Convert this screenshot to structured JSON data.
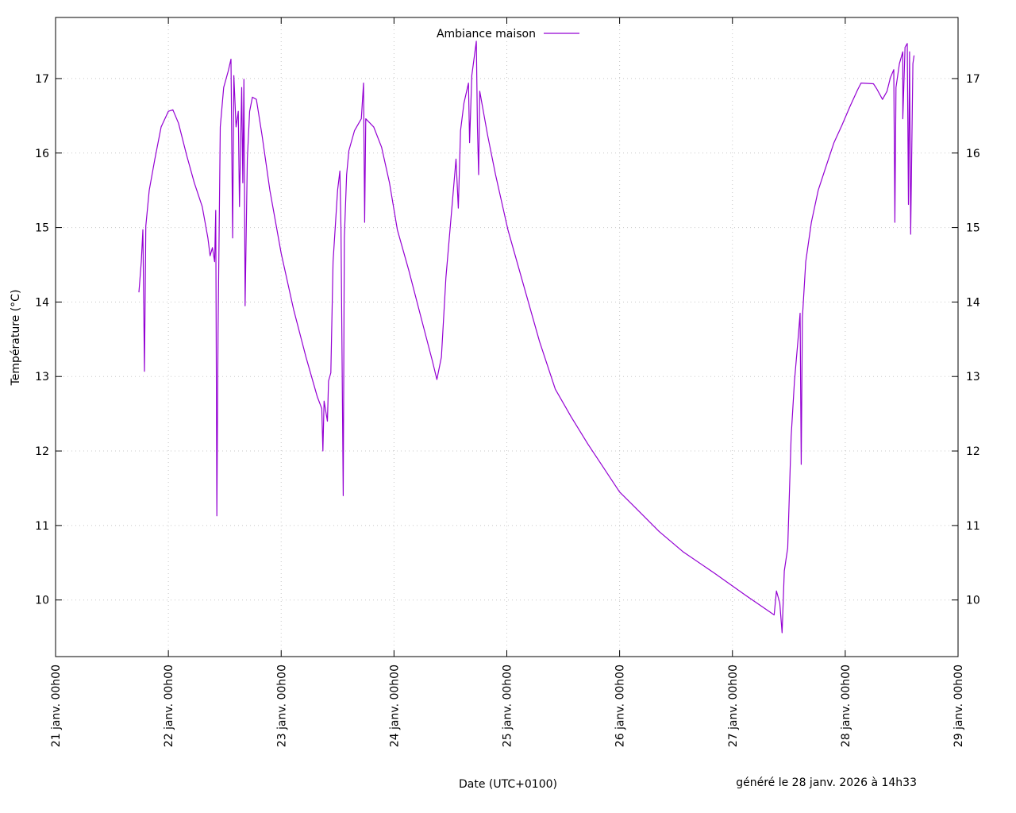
{
  "chart_data": {
    "type": "line",
    "title": "",
    "xlabel": "Date (UTC+0100)",
    "ylabel": "Température (°C)",
    "footer": "généré le 28 janv. 2026 à 14h33",
    "x_unit": "days since 21 janv. 00h00",
    "xlim": [
      0,
      8
    ],
    "ylim": [
      9.24,
      17.82
    ],
    "x_ticks": [
      "21 janv. 00h00",
      "22 janv. 00h00",
      "23 janv. 00h00",
      "24 janv. 00h00",
      "25 janv. 00h00",
      "26 janv. 00h00",
      "27 janv. 00h00",
      "28 janv. 00h00",
      "29 janv. 00h00"
    ],
    "y_ticks": [
      10,
      11,
      12,
      13,
      14,
      15,
      16,
      17
    ],
    "grid": true,
    "legend_position": "top-center",
    "series": [
      {
        "name": "Ambiance maison",
        "color": "#9400d3",
        "points": [
          [
            0.739,
            14.13
          ],
          [
            0.76,
            14.54
          ],
          [
            0.774,
            14.97
          ],
          [
            0.788,
            13.07
          ],
          [
            0.8,
            15.02
          ],
          [
            0.83,
            15.5
          ],
          [
            0.88,
            15.92
          ],
          [
            0.936,
            16.35
          ],
          [
            1.0,
            16.56
          ],
          [
            1.04,
            16.58
          ],
          [
            1.09,
            16.4
          ],
          [
            1.16,
            15.98
          ],
          [
            1.23,
            15.6
          ],
          [
            1.3,
            15.28
          ],
          [
            1.35,
            14.86
          ],
          [
            1.37,
            14.62
          ],
          [
            1.39,
            14.73
          ],
          [
            1.41,
            14.54
          ],
          [
            1.42,
            15.23
          ],
          [
            1.43,
            11.13
          ],
          [
            1.44,
            13.58
          ],
          [
            1.46,
            16.35
          ],
          [
            1.49,
            16.88
          ],
          [
            1.53,
            17.1
          ],
          [
            1.555,
            17.26
          ],
          [
            1.57,
            14.86
          ],
          [
            1.58,
            17.04
          ],
          [
            1.6,
            16.35
          ],
          [
            1.62,
            16.56
          ],
          [
            1.63,
            15.28
          ],
          [
            1.65,
            16.88
          ],
          [
            1.66,
            15.6
          ],
          [
            1.67,
            16.99
          ],
          [
            1.68,
            13.95
          ],
          [
            1.7,
            15.92
          ],
          [
            1.72,
            16.56
          ],
          [
            1.745,
            16.75
          ],
          [
            1.78,
            16.72
          ],
          [
            1.83,
            16.24
          ],
          [
            1.9,
            15.5
          ],
          [
            2.0,
            14.65
          ],
          [
            2.11,
            13.9
          ],
          [
            2.22,
            13.26
          ],
          [
            2.32,
            12.73
          ],
          [
            2.36,
            12.57
          ],
          [
            2.37,
            12.0
          ],
          [
            2.38,
            12.67
          ],
          [
            2.41,
            12.4
          ],
          [
            2.42,
            12.94
          ],
          [
            2.44,
            13.05
          ],
          [
            2.46,
            14.54
          ],
          [
            2.5,
            15.5
          ],
          [
            2.52,
            15.76
          ],
          [
            2.53,
            14.97
          ],
          [
            2.55,
            11.4
          ],
          [
            2.56,
            14.86
          ],
          [
            2.58,
            15.71
          ],
          [
            2.6,
            16.03
          ],
          [
            2.65,
            16.3
          ],
          [
            2.71,
            16.46
          ],
          [
            2.73,
            16.94
          ],
          [
            2.74,
            15.07
          ],
          [
            2.75,
            16.46
          ],
          [
            2.82,
            16.35
          ],
          [
            2.89,
            16.08
          ],
          [
            2.96,
            15.6
          ],
          [
            3.03,
            14.97
          ],
          [
            3.13,
            14.43
          ],
          [
            3.24,
            13.79
          ],
          [
            3.34,
            13.21
          ],
          [
            3.38,
            12.96
          ],
          [
            3.42,
            13.26
          ],
          [
            3.46,
            14.33
          ],
          [
            3.52,
            15.39
          ],
          [
            3.55,
            15.92
          ],
          [
            3.57,
            15.26
          ],
          [
            3.59,
            16.3
          ],
          [
            3.62,
            16.67
          ],
          [
            3.66,
            16.94
          ],
          [
            3.67,
            16.14
          ],
          [
            3.69,
            17.04
          ],
          [
            3.73,
            17.5
          ],
          [
            3.74,
            16.35
          ],
          [
            3.75,
            15.71
          ],
          [
            3.76,
            16.83
          ],
          [
            3.83,
            16.24
          ],
          [
            3.9,
            15.71
          ],
          [
            4.01,
            14.97
          ],
          [
            4.15,
            14.22
          ],
          [
            4.29,
            13.47
          ],
          [
            4.43,
            12.83
          ],
          [
            4.57,
            12.46
          ],
          [
            4.72,
            12.09
          ],
          [
            4.86,
            11.77
          ],
          [
            5.0,
            11.45
          ],
          [
            5.14,
            11.24
          ],
          [
            5.35,
            10.92
          ],
          [
            5.56,
            10.65
          ],
          [
            5.84,
            10.36
          ],
          [
            6.12,
            10.06
          ],
          [
            6.37,
            9.8
          ],
          [
            6.39,
            10.12
          ],
          [
            6.42,
            9.96
          ],
          [
            6.44,
            9.56
          ],
          [
            6.46,
            10.39
          ],
          [
            6.49,
            10.7
          ],
          [
            6.52,
            12.19
          ],
          [
            6.55,
            12.94
          ],
          [
            6.58,
            13.47
          ],
          [
            6.6,
            13.85
          ],
          [
            6.61,
            11.82
          ],
          [
            6.62,
            13.79
          ],
          [
            6.65,
            14.54
          ],
          [
            6.7,
            15.07
          ],
          [
            6.76,
            15.5
          ],
          [
            6.83,
            15.82
          ],
          [
            6.9,
            16.14
          ],
          [
            6.97,
            16.37
          ],
          [
            7.04,
            16.62
          ],
          [
            7.11,
            16.85
          ],
          [
            7.14,
            16.94
          ],
          [
            7.25,
            16.93
          ],
          [
            7.28,
            16.86
          ],
          [
            7.33,
            16.72
          ],
          [
            7.37,
            16.83
          ],
          [
            7.4,
            17.01
          ],
          [
            7.43,
            17.12
          ],
          [
            7.44,
            15.07
          ],
          [
            7.45,
            16.88
          ],
          [
            7.48,
            17.2
          ],
          [
            7.51,
            17.36
          ],
          [
            7.51,
            16.46
          ],
          [
            7.53,
            17.42
          ],
          [
            7.55,
            17.47
          ],
          [
            7.56,
            15.31
          ],
          [
            7.57,
            17.36
          ],
          [
            7.58,
            14.91
          ],
          [
            7.6,
            17.2
          ],
          [
            7.61,
            17.31
          ]
        ]
      }
    ]
  }
}
